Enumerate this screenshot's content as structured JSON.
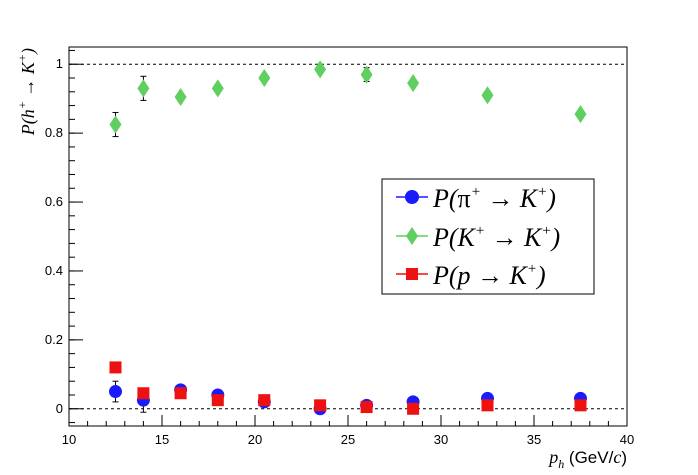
{
  "chart_data": {
    "type": "scatter",
    "title": "",
    "xlabel": {
      "main": "p",
      "sub": "h",
      "unit_open": " (GeV/",
      "unit_c": "c",
      "unit_close": ")"
    },
    "ylabel": {
      "lead": "P(h",
      "sup1": "+",
      "arrow": " → K",
      "sup2": "+",
      "close": ")"
    },
    "xlim": [
      10,
      40
    ],
    "ylim": [
      -0.05,
      1.05
    ],
    "xticks": [
      10,
      15,
      20,
      25,
      30,
      35,
      40
    ],
    "yticks": [
      0,
      0.2,
      0.4,
      0.6,
      0.8,
      1
    ],
    "ytick_labels": [
      "0",
      "0.2",
      "0.4",
      "0.6",
      "0.8",
      "1"
    ],
    "reference_lines": [
      0,
      1
    ],
    "legend_position": "center-right",
    "series": [
      {
        "name": "pi_to_K",
        "legend": {
          "lead": "P(",
          "sym": "π",
          "sup1": "+",
          "arrow": " → K",
          "sup2": "+",
          "close": ")"
        },
        "marker": "circle",
        "color": "#1a1aff",
        "x": [
          12.5,
          14,
          16,
          18,
          20.5,
          23.5,
          26,
          28.5,
          32.5,
          37.5
        ],
        "y": [
          0.05,
          0.025,
          0.055,
          0.04,
          0.02,
          0.0,
          0.01,
          0.02,
          0.03,
          0.03
        ],
        "err": [
          0.03,
          0.035,
          0.0,
          0.0,
          0.0,
          0.0,
          0.005,
          0.0,
          0.0,
          0.0
        ]
      },
      {
        "name": "K_to_K",
        "legend": {
          "lead": "P(K",
          "sup1": "+",
          "arrow": " → K",
          "sup2": "+",
          "close": ")"
        },
        "marker": "diamond",
        "color": "#5fcf5f",
        "x": [
          12.5,
          14,
          16,
          18,
          20.5,
          23.5,
          26,
          28.5,
          32.5,
          37.5
        ],
        "y": [
          0.825,
          0.93,
          0.905,
          0.93,
          0.96,
          0.985,
          0.97,
          0.945,
          0.91,
          0.855
        ],
        "err": [
          0.035,
          0.035,
          0.0,
          0.0,
          0.0,
          0.0,
          0.02,
          0.0,
          0.0,
          0.0
        ]
      },
      {
        "name": "p_to_K",
        "legend": {
          "lead": "P(p",
          "arrow": " → K",
          "sup2": "+",
          "close": ")"
        },
        "marker": "square",
        "color": "#ee1111",
        "x": [
          12.5,
          14,
          16,
          18,
          20.5,
          23.5,
          26,
          28.5,
          32.5,
          37.5
        ],
        "y": [
          0.12,
          0.045,
          0.045,
          0.025,
          0.025,
          0.01,
          0.005,
          0.0,
          0.01,
          0.01
        ],
        "err": [
          0.0,
          0.0,
          0.0,
          0.0,
          0.0,
          0.0,
          0.0,
          0.0,
          0.0,
          0.0
        ]
      }
    ]
  }
}
